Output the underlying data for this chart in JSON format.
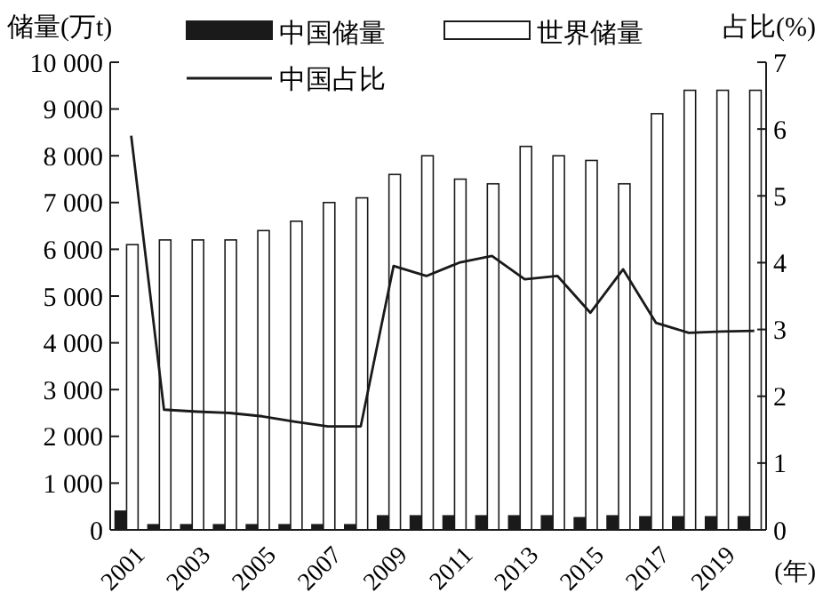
{
  "chart_data": {
    "type": "bar",
    "ylabel": "储量(万t)",
    "y2label": "占比(%)",
    "xlabel": "(年)",
    "categories": [
      "2001",
      null,
      "2003",
      null,
      "2005",
      null,
      "2007",
      null,
      "2009",
      null,
      "2011",
      null,
      "2013",
      null,
      "2015",
      null,
      "2017",
      null,
      "2019",
      null
    ],
    "series": [
      {
        "name": "中国储量",
        "color": "#1a1a1a",
        "values": [
          400,
          110,
          110,
          110,
          110,
          110,
          110,
          110,
          300,
          300,
          300,
          300,
          300,
          300,
          260,
          300,
          280,
          280,
          280,
          280
        ]
      },
      {
        "name": "世界储量",
        "color": "#ffffff",
        "values": [
          6100,
          6200,
          6200,
          6200,
          6400,
          6600,
          7000,
          7100,
          7600,
          8000,
          7500,
          7400,
          8200,
          8000,
          7900,
          7400,
          8900,
          9400,
          9400,
          9400
        ]
      },
      {
        "name": "中国占比",
        "type": "line",
        "axis": "y2",
        "color": "#1a1a1a",
        "values": [
          5.9,
          1.8,
          1.77,
          1.75,
          1.7,
          1.62,
          1.55,
          1.55,
          3.95,
          3.8,
          4.0,
          4.1,
          3.75,
          3.8,
          3.25,
          3.9,
          3.1,
          2.95,
          2.97,
          2.98
        ]
      }
    ],
    "ylim": [
      0,
      10000
    ],
    "yticks": [
      0,
      {
        "value": 1000,
        "label": "1 000"
      },
      {
        "value": 2000,
        "label": "2 000"
      },
      {
        "value": 3000,
        "label": "3 000"
      },
      {
        "value": 4000,
        "label": "4 000"
      },
      {
        "value": 5000,
        "label": "5 000"
      },
      {
        "value": 6000,
        "label": "6 000"
      },
      {
        "value": 7000,
        "label": "7 000"
      },
      {
        "value": 8000,
        "label": "8 000"
      },
      {
        "value": 9000,
        "label": "9 000"
      },
      {
        "value": 10000,
        "label": "10 000"
      }
    ],
    "y2lim": [
      0,
      7
    ],
    "y2ticks": [
      0,
      1,
      2,
      3,
      4,
      5,
      6,
      7
    ],
    "legend": "top",
    "grid": false,
    "marker": "none",
    "line_style": "solid"
  }
}
